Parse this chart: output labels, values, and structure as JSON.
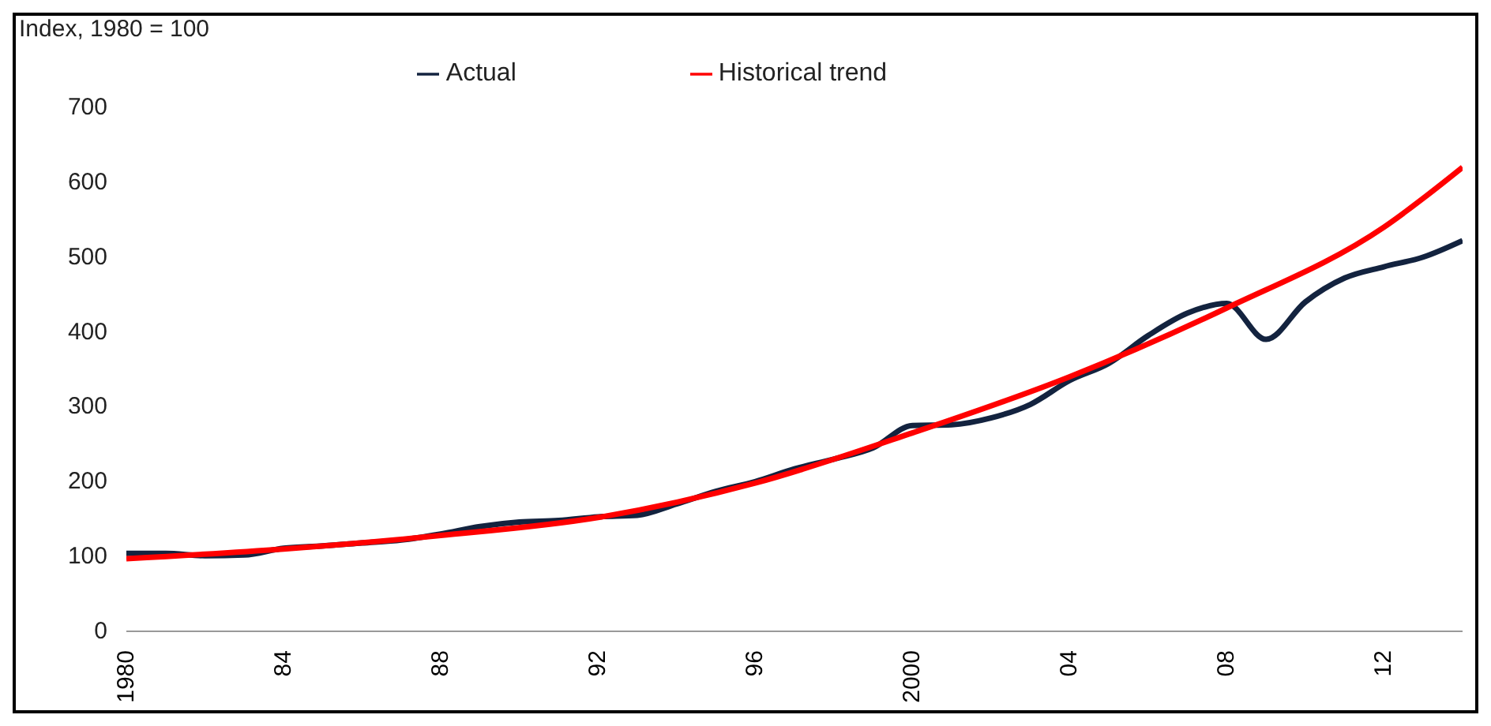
{
  "chart_data": {
    "type": "line",
    "ylabel": "Index, 1980 = 100",
    "xlim": [
      1980,
      2014
    ],
    "xticks": [
      {
        "value": 1980,
        "label": "1980"
      },
      {
        "value": 1984,
        "label": "84"
      },
      {
        "value": 1988,
        "label": "88"
      },
      {
        "value": 1992,
        "label": "92"
      },
      {
        "value": 1996,
        "label": "96"
      },
      {
        "value": 2000,
        "label": "2000"
      },
      {
        "value": 2004,
        "label": "04"
      },
      {
        "value": 2008,
        "label": "08"
      },
      {
        "value": 2012,
        "label": "12"
      }
    ],
    "ylim": [
      0,
      700
    ],
    "yticks": [
      0,
      100,
      200,
      300,
      400,
      500,
      600,
      700
    ],
    "grid": false,
    "legend": "top",
    "marker": "none",
    "line_style": "solid",
    "series": [
      {
        "name": "Actual",
        "color": "#13233f",
        "x": [
          1980,
          1981,
          1982,
          1983,
          1984,
          1985,
          1986,
          1987,
          1988,
          1989,
          1990,
          1991,
          1992,
          1993,
          1994,
          1995,
          1996,
          1997,
          1998,
          1999,
          2000,
          2001,
          2002,
          2003,
          2004,
          2005,
          2006,
          2007,
          2008,
          2009,
          2010,
          2011,
          2012,
          2013,
          2014
        ],
        "values": [
          104,
          104,
          101,
          102,
          111,
          114,
          118,
          122,
          130,
          140,
          146,
          148,
          153,
          155,
          170,
          187,
          200,
          217,
          230,
          245,
          275,
          276,
          285,
          303,
          335,
          358,
          395,
          425,
          438,
          390,
          440,
          472,
          487,
          500,
          522
        ]
      },
      {
        "name": "Historical trend",
        "color": "#ff0000",
        "x": [
          1980,
          1984,
          1988,
          1992,
          1996,
          2000,
          2004,
          2008,
          2012,
          2014
        ],
        "values": [
          97,
          110,
          128,
          152,
          198,
          265,
          340,
          432,
          540,
          620
        ]
      }
    ]
  }
}
